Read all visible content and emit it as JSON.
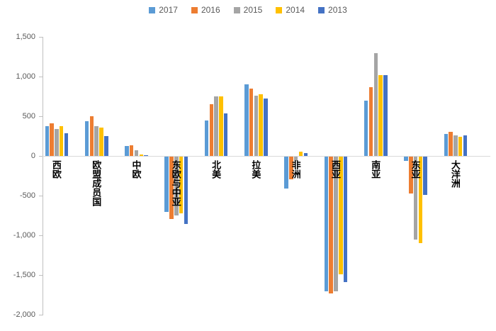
{
  "chart_data": {
    "type": "bar",
    "title": "",
    "categories": [
      "西欧",
      "欧盟成员国",
      "中欧",
      "东欧与中亚",
      "北美",
      "拉美",
      "非洲",
      "西亚",
      "南亚",
      "东亚",
      "大洋洲"
    ],
    "series": [
      {
        "name": "2017",
        "color": "#5B9BD5",
        "values": [
          375,
          440,
          125,
          -700,
          445,
          900,
          -405,
          -1700,
          700,
          -50,
          275
        ]
      },
      {
        "name": "2016",
        "color": "#ED7D31",
        "values": [
          410,
          500,
          135,
          -785,
          650,
          845,
          -290,
          -1720,
          865,
          -465,
          300
        ]
      },
      {
        "name": "2015",
        "color": "#A5A5A5",
        "values": [
          340,
          375,
          70,
          -740,
          750,
          760,
          -55,
          -1700,
          1295,
          -1045,
          260
        ]
      },
      {
        "name": "2014",
        "color": "#FFC000",
        "values": [
          375,
          355,
          15,
          -715,
          750,
          780,
          55,
          -1480,
          1015,
          -1090,
          240
        ]
      },
      {
        "name": "2013",
        "color": "#4472C4",
        "values": [
          285,
          250,
          10,
          -850,
          535,
          720,
          35,
          -1580,
          1015,
          -480,
          260
        ]
      }
    ],
    "y_axis": {
      "min": -2000,
      "max": 1500,
      "step": 500,
      "tick_labels": [
        "1,500",
        "1,000",
        "500",
        "0",
        "-500",
        "-1,000",
        "-1,500",
        "-2,000"
      ]
    },
    "legend_position": "top",
    "grid": false,
    "axis_color": "#BFBFBF",
    "zero_line_color": "#D9D9D9",
    "label_color": "#595959"
  }
}
